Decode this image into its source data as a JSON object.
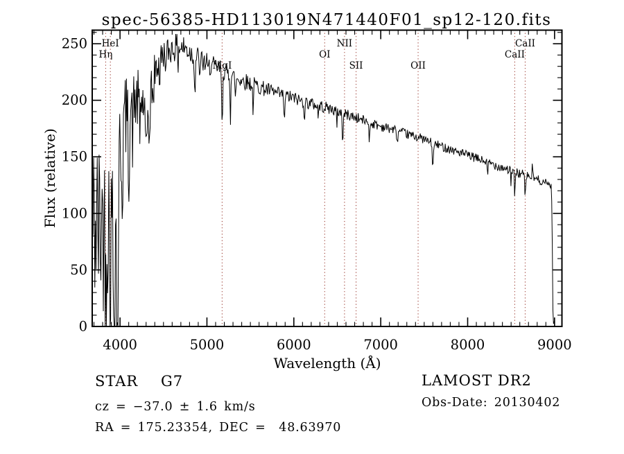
{
  "title": "spec-56385-HD113019N471440F01_sp12-120.fits",
  "footer": {
    "class_label": "STAR",
    "subclass": "G7",
    "cz_line": "cz = −37.0 ± 1.6 km/s",
    "radec_line": "RA = 175.23354, DEC =  48.63970",
    "survey": "LAMOST DR2",
    "obs_date_line": "Obs-Date: 20130402"
  },
  "chart_data": {
    "type": "line",
    "title": "spec-56385-HD113019N471440F01_sp12-120.fits",
    "xlabel": "Wavelength (Å)",
    "ylabel": "Flux (relative)",
    "xlim": [
      3680,
      9085
    ],
    "ylim": [
      0,
      262
    ],
    "xticks": [
      4000,
      5000,
      6000,
      7000,
      8000,
      9000
    ],
    "yticks": [
      0,
      50,
      100,
      150,
      200,
      250
    ],
    "x_minor_step": 100,
    "y_minor_step": 10,
    "grid": false,
    "legend": "none",
    "line_color": "#000000",
    "spectral_line_color": "#9b3a30",
    "spectral_lines": [
      {
        "label": "Hη",
        "wavelength": 3835,
        "row": 2
      },
      {
        "label": "HeI",
        "wavelength": 3889,
        "row": 1
      },
      {
        "label": "MgI",
        "wavelength": 5175,
        "row": 3
      },
      {
        "label": "OI",
        "wavelength": 6355,
        "row": 2
      },
      {
        "label": "NII",
        "wavelength": 6583,
        "row": 1
      },
      {
        "label": "SII",
        "wavelength": 6716,
        "row": 3
      },
      {
        "label": "OII",
        "wavelength": 7430,
        "row": 3
      },
      {
        "label": "CaII",
        "wavelength": 8542,
        "row": 2
      },
      {
        "label": "CaII",
        "wavelength": 8662,
        "row": 1
      }
    ],
    "spectrum": {
      "seed": 42,
      "sample_step": 7,
      "envelope": [
        [
          3682,
          90
        ],
        [
          3750,
          88
        ],
        [
          3800,
          92
        ],
        [
          3850,
          95
        ],
        [
          3900,
          100
        ],
        [
          3940,
          112
        ],
        [
          3980,
          130
        ],
        [
          4010,
          160
        ],
        [
          4050,
          183
        ],
        [
          4100,
          190
        ],
        [
          4150,
          196
        ],
        [
          4200,
          200
        ],
        [
          4250,
          198
        ],
        [
          4320,
          195
        ],
        [
          4400,
          225
        ],
        [
          4450,
          235
        ],
        [
          4500,
          240
        ],
        [
          4600,
          246
        ],
        [
          4700,
          247
        ],
        [
          4750,
          246
        ],
        [
          4800,
          243
        ],
        [
          4850,
          240
        ],
        [
          4900,
          237
        ],
        [
          4950,
          234
        ],
        [
          5000,
          232
        ],
        [
          5100,
          229
        ],
        [
          5200,
          226
        ],
        [
          5300,
          221
        ],
        [
          5400,
          218
        ],
        [
          5500,
          215
        ],
        [
          5600,
          212
        ],
        [
          5700,
          209
        ],
        [
          5800,
          206
        ],
        [
          5900,
          204
        ],
        [
          6000,
          202
        ],
        [
          6100,
          199
        ],
        [
          6250,
          196
        ],
        [
          6400,
          193
        ],
        [
          6550,
          189
        ],
        [
          6700,
          185
        ],
        [
          6850,
          181
        ],
        [
          7000,
          177
        ],
        [
          7150,
          174
        ],
        [
          7300,
          170
        ],
        [
          7450,
          167
        ],
        [
          7600,
          162
        ],
        [
          7750,
          158
        ],
        [
          7900,
          154
        ],
        [
          8050,
          150
        ],
        [
          8200,
          146
        ],
        [
          8350,
          142
        ],
        [
          8500,
          138
        ],
        [
          8650,
          134
        ],
        [
          8800,
          130
        ],
        [
          8900,
          127
        ],
        [
          8940,
          126
        ],
        [
          8962,
          124
        ],
        [
          8972,
          100
        ],
        [
          8978,
          22
        ],
        [
          8984,
          4
        ],
        [
          9006,
          3
        ]
      ],
      "noise_amplitude": [
        [
          3682,
          85
        ],
        [
          3780,
          82
        ],
        [
          3860,
          75
        ],
        [
          3940,
          68
        ],
        [
          3990,
          60
        ],
        [
          4040,
          42
        ],
        [
          4120,
          30
        ],
        [
          4250,
          26
        ],
        [
          4350,
          20
        ],
        [
          4450,
          15
        ],
        [
          4550,
          13
        ],
        [
          4700,
          12
        ],
        [
          4900,
          11
        ],
        [
          5100,
          9
        ],
        [
          5300,
          8
        ],
        [
          5600,
          7
        ],
        [
          5900,
          6
        ],
        [
          6200,
          5.5
        ],
        [
          6500,
          5
        ],
        [
          6900,
          4.5
        ],
        [
          7300,
          4
        ],
        [
          7700,
          4
        ],
        [
          8100,
          4
        ],
        [
          8500,
          4.5
        ],
        [
          8800,
          4
        ],
        [
          8950,
          3
        ],
        [
          8975,
          2
        ],
        [
          9006,
          1
        ]
      ],
      "absorption_features": [
        [
          3835,
          45,
          7
        ],
        [
          3889,
          50,
          7
        ],
        [
          3933,
          115,
          9
        ],
        [
          3969,
          140,
          8
        ],
        [
          4026,
          55,
          5
        ],
        [
          4101,
          55,
          7
        ],
        [
          4144,
          30,
          5
        ],
        [
          4227,
          35,
          4
        ],
        [
          4300,
          52,
          9
        ],
        [
          4340,
          42,
          6
        ],
        [
          4383,
          30,
          4
        ],
        [
          4455,
          22,
          4
        ],
        [
          4530,
          18,
          4
        ],
        [
          4668,
          15,
          3
        ],
        [
          4861,
          35,
          5
        ],
        [
          4920,
          20,
          4
        ],
        [
          5015,
          15,
          3
        ],
        [
          5175,
          54,
          5
        ],
        [
          5270,
          38,
          4
        ],
        [
          5329,
          22,
          4
        ],
        [
          5530,
          28,
          4
        ],
        [
          5890,
          25,
          5
        ],
        [
          6122,
          15,
          4
        ],
        [
          6280,
          12,
          4
        ],
        [
          6495,
          15,
          4
        ],
        [
          6563,
          28,
          5
        ],
        [
          6870,
          16,
          5
        ],
        [
          7190,
          12,
          5
        ],
        [
          7600,
          20,
          7
        ],
        [
          8230,
          12,
          5
        ],
        [
          8498,
          18,
          3
        ],
        [
          8542,
          30,
          3.5
        ],
        [
          8662,
          30,
          3.5
        ],
        [
          8745,
          -14,
          3
        ]
      ]
    }
  }
}
